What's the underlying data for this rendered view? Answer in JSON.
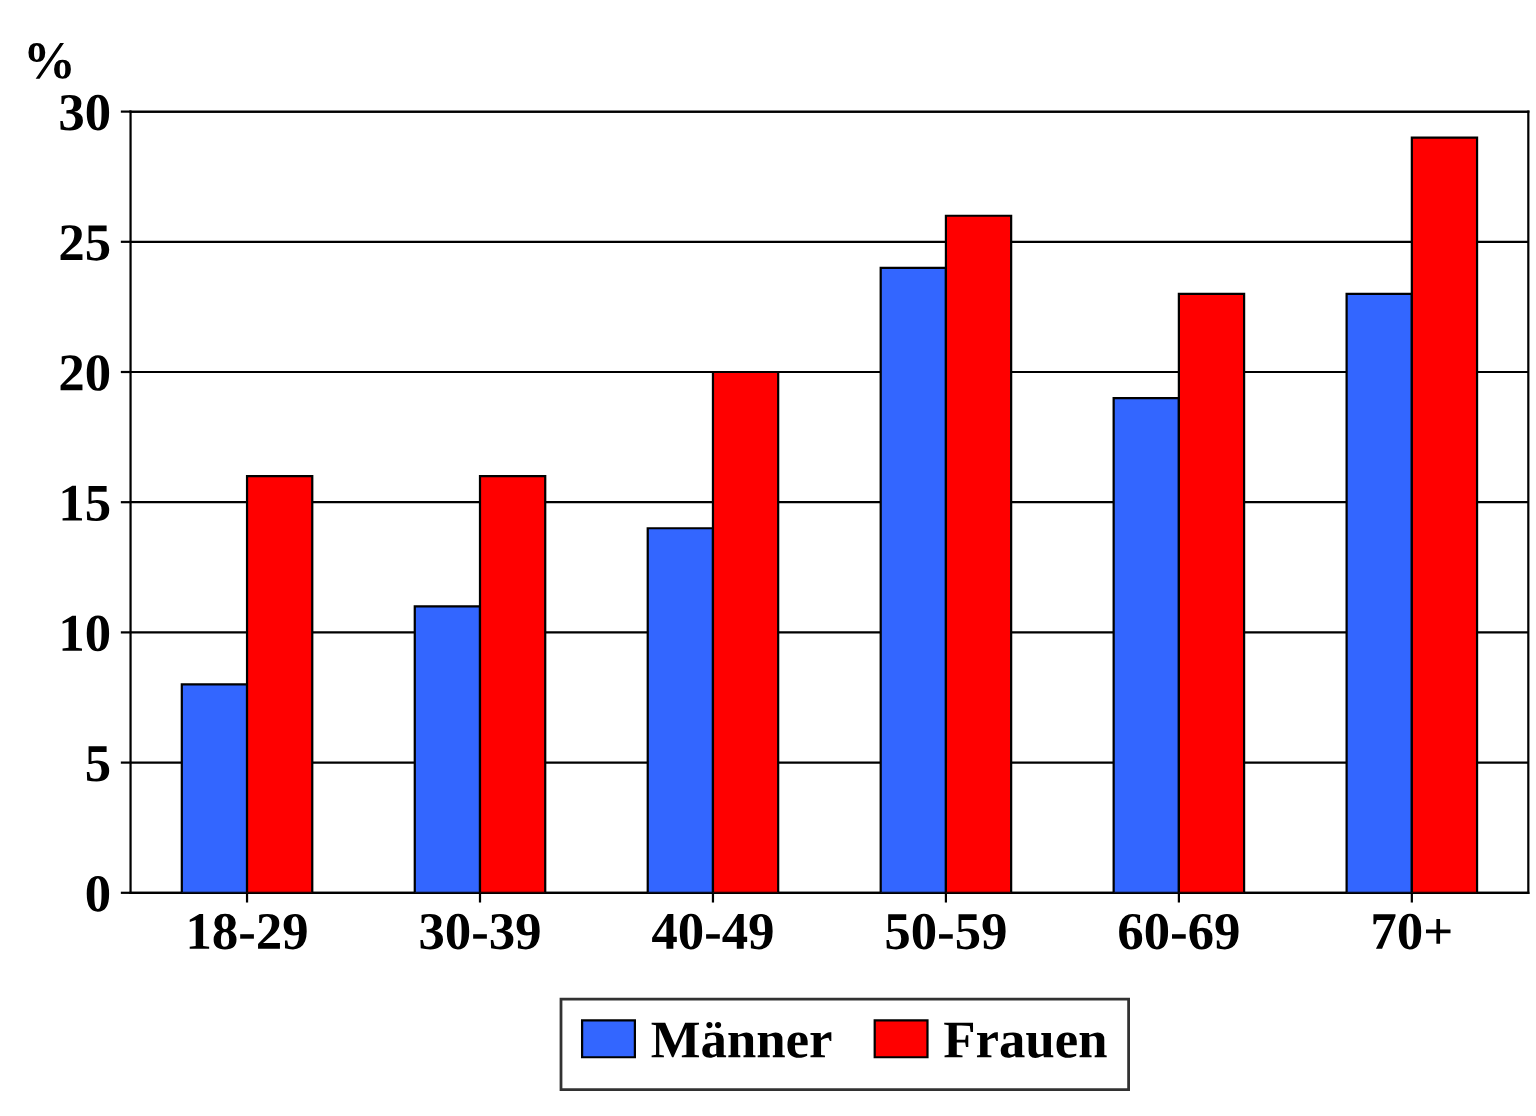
{
  "chart_data": {
    "type": "bar",
    "ylabel": "%",
    "categories": [
      "18-29",
      "30-39",
      "40-49",
      "50-59",
      "60-69",
      "70+"
    ],
    "series": [
      {
        "name": "Männer",
        "color": "#3366ff",
        "values": [
          8,
          11,
          14,
          24,
          19,
          23
        ]
      },
      {
        "name": "Frauen",
        "color": "#ff0000",
        "values": [
          16,
          16,
          20,
          26,
          23,
          29
        ]
      }
    ],
    "ylim": [
      0,
      30
    ],
    "yticks": [
      0,
      5,
      10,
      15,
      20,
      25,
      30
    ],
    "grid": "y",
    "legend": "bottom"
  }
}
